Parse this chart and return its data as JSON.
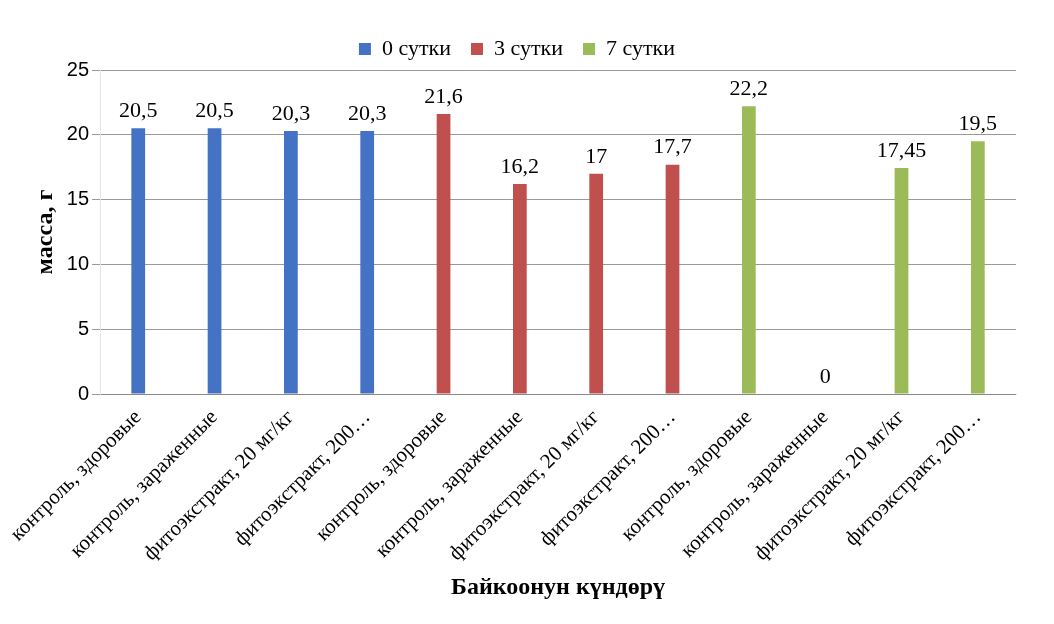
{
  "chart_data": {
    "type": "bar",
    "xlabel": "Байкоонун күндөрү",
    "ylabel": "масса, г",
    "categories": [
      "контроль, здоровые",
      "контроль, зараженные",
      "фитоэкстракт, 20 мг/кг",
      "фитоэкстракт, 200…",
      "контроль, здоровые",
      "контроль, зараженные",
      "фитоэкстракт, 20 мг/кг",
      "фитоэкстракт, 200…",
      "контроль, здоровые",
      "контроль, зараженные",
      "фитоэкстракт, 20 мг/кг",
      "фитоэкстракт, 200…"
    ],
    "series": [
      {
        "name": "0 сутки",
        "color": "#4472c4",
        "values": [
          20.5,
          20.5,
          20.3,
          20.3,
          null,
          null,
          null,
          null,
          null,
          null,
          null,
          null
        ],
        "value_labels": [
          "20,5",
          "20,5",
          "20,3",
          "20,3",
          null,
          null,
          null,
          null,
          null,
          null,
          null,
          null
        ]
      },
      {
        "name": "3 сутки",
        "color": "#c0504d",
        "values": [
          null,
          null,
          null,
          null,
          21.6,
          16.2,
          17,
          17.7,
          null,
          null,
          null,
          null
        ],
        "value_labels": [
          null,
          null,
          null,
          null,
          "21,6",
          "16,2",
          "17",
          "17,7",
          null,
          null,
          null,
          null
        ]
      },
      {
        "name": "7 сутки",
        "color": "#9bbb59",
        "values": [
          null,
          null,
          null,
          null,
          null,
          null,
          null,
          null,
          22.2,
          0,
          17.45,
          19.5
        ],
        "value_labels": [
          null,
          null,
          null,
          null,
          null,
          null,
          null,
          null,
          "22,2",
          "0",
          "17,45",
          "19,5"
        ]
      }
    ],
    "ylim": [
      0,
      25
    ],
    "yticks": [
      0,
      5,
      10,
      15,
      20,
      25
    ],
    "grid": "y",
    "legend": "top"
  }
}
